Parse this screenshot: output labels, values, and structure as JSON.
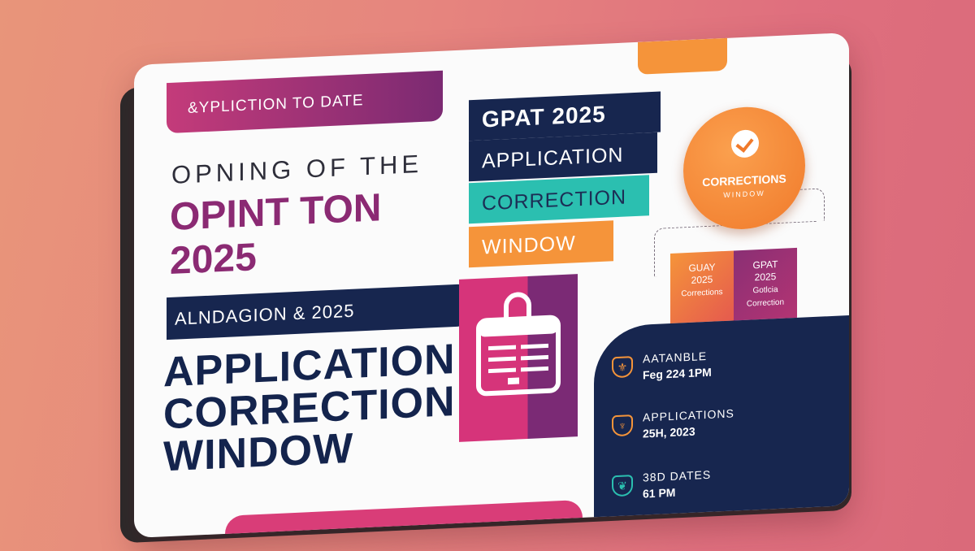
{
  "banner": {
    "label": "&YPLICTION TO DATE"
  },
  "heading": {
    "light": "OPNING OF THE",
    "line1": "OPINT TON",
    "line2": "2025"
  },
  "sub_bar": {
    "label": "ALNDAGION & 2025"
  },
  "title": {
    "line1": "APPLICATION",
    "line2": "CORRECTION",
    "line3": "WINDOW"
  },
  "label_stack": {
    "gpat": "GPAT 2025",
    "application": "APPLICATION",
    "correction": "CORRECTION",
    "window": "WINDOW"
  },
  "badge": {
    "title": "CORRECTIONS",
    "subtitle": "WINDOW"
  },
  "mini_cards": [
    {
      "line1": "GUAY",
      "line2": "2025",
      "line3": "Corrections"
    },
    {
      "line1": "GPAT",
      "line2": "2025",
      "line3": "Gotlcia",
      "line4": "Correction"
    }
  ],
  "info_panel": [
    {
      "label": "AATANBLE",
      "value": "Feg 224  1PM",
      "icon": "shield-icon"
    },
    {
      "label": "APPLICATIONS",
      "value": "25H, 2023",
      "icon": "microphone-icon"
    },
    {
      "label": "38D DATES",
      "value": "61 PM",
      "icon": "leaf-icon"
    }
  ],
  "colors": {
    "navy": "#17264f",
    "magenta": "#d6347a",
    "plum": "#8b2a73",
    "orange": "#f5943a",
    "teal": "#2bbfb0"
  }
}
